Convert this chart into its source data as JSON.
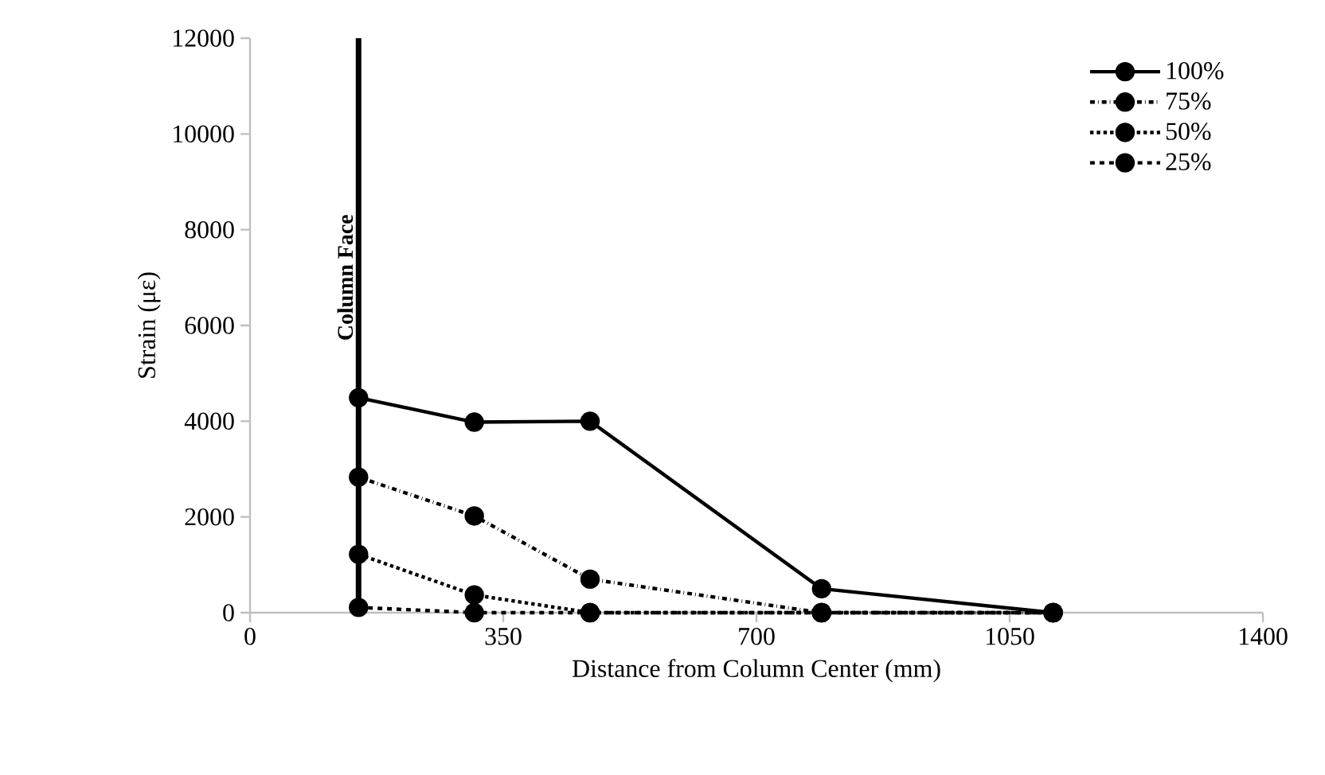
{
  "chart_data": {
    "type": "line",
    "xlabel": "Distance from Column Center (mm)",
    "ylabel": "Strain (με)",
    "x": [
      150,
      310,
      470,
      790,
      1110
    ],
    "series": [
      {
        "name": "100%",
        "color": "#000000",
        "line_style": "solid",
        "values": [
          4490,
          3980,
          4000,
          500,
          0
        ]
      },
      {
        "name": "75%",
        "color": "#000000",
        "line_style": "dashdot",
        "values": [
          2830,
          2020,
          700,
          0,
          0
        ]
      },
      {
        "name": "50%",
        "color": "#000000",
        "line_style": "dotted",
        "values": [
          1220,
          370,
          0,
          0,
          0
        ]
      },
      {
        "name": "25%",
        "color": "#000000",
        "line_style": "dashed",
        "values": [
          110,
          0,
          0,
          0,
          0
        ]
      }
    ],
    "marker": "circle",
    "legend": "top right",
    "grid": false,
    "xlim": [
      0,
      1400
    ],
    "xticks": [
      0,
      350,
      700,
      1050,
      1400
    ],
    "ylim": [
      0,
      12000
    ],
    "yticks": [
      0,
      2000,
      4000,
      6000,
      8000,
      10000,
      12000
    ],
    "ref_lines": [
      {
        "axis": "x",
        "value": 150,
        "label": "Column Face",
        "color": "#000000"
      }
    ]
  }
}
